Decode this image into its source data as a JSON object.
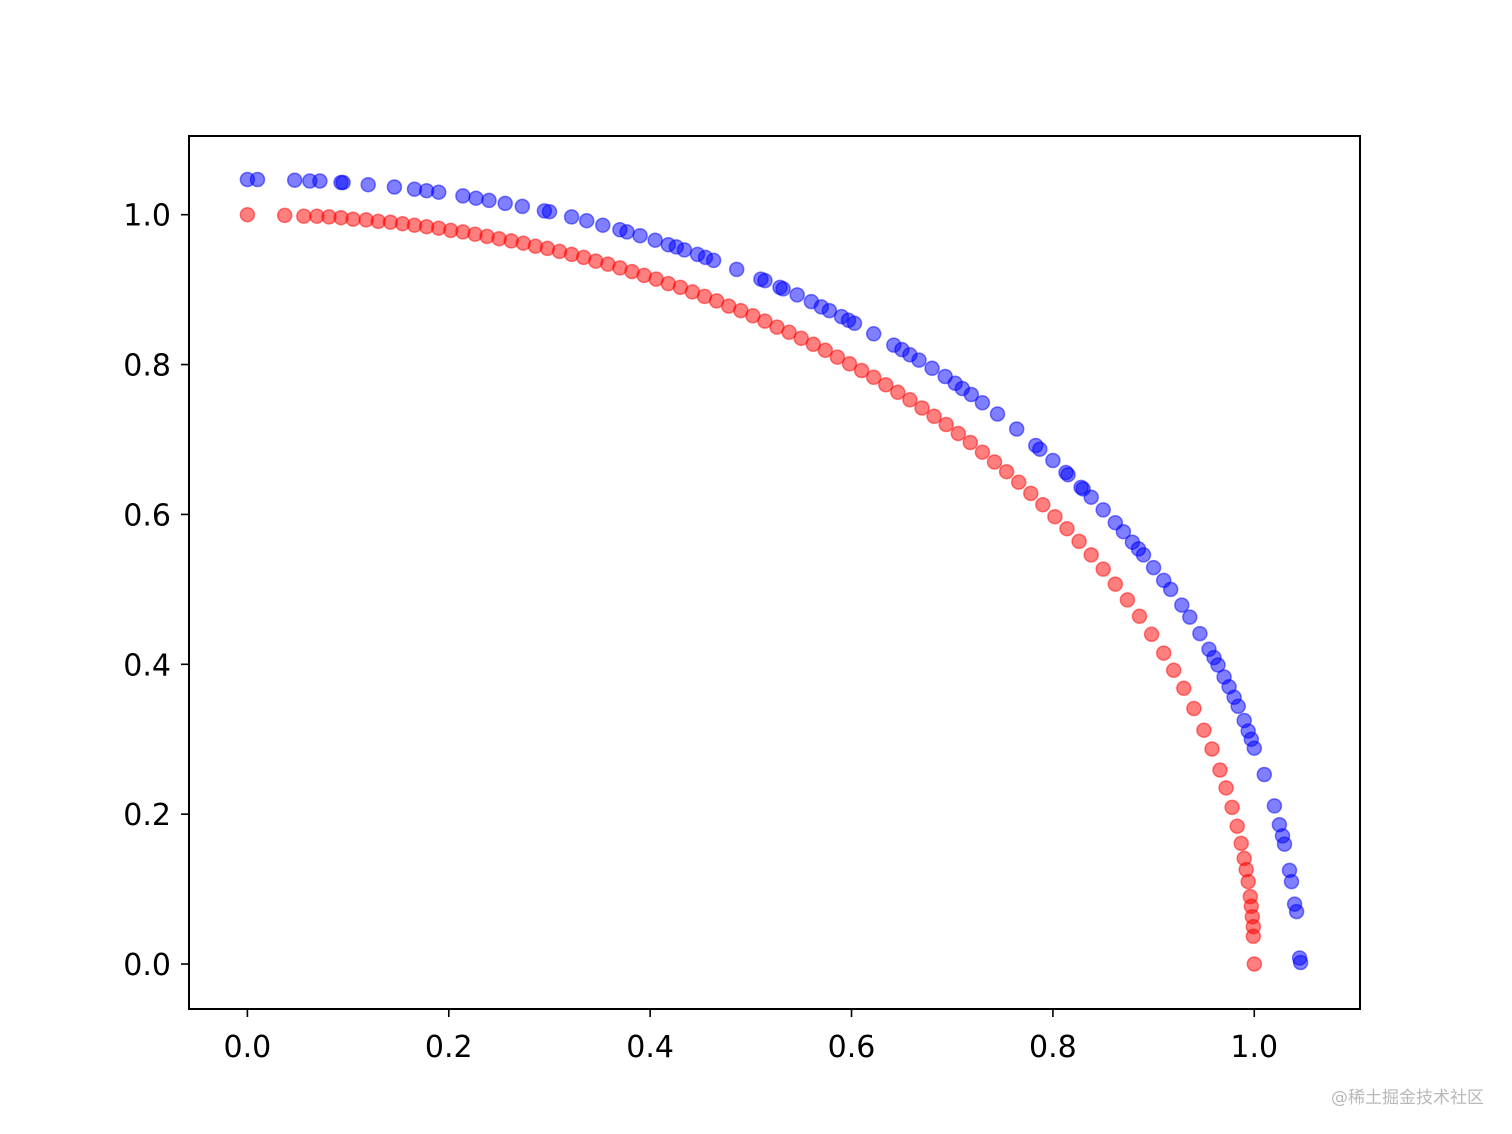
{
  "chart_data": {
    "type": "scatter",
    "title": "",
    "xlabel": "",
    "ylabel": "",
    "xlim": [
      -0.058,
      1.105
    ],
    "ylim": [
      -0.06,
      1.105
    ],
    "xticks": [
      0.0,
      0.2,
      0.4,
      0.6,
      0.8,
      1.0
    ],
    "yticks": [
      0.0,
      0.2,
      0.4,
      0.6,
      0.8,
      1.0
    ],
    "xtick_labels": [
      "0.0",
      "0.2",
      "0.4",
      "0.6",
      "0.8",
      "1.0"
    ],
    "ytick_labels": [
      "0.0",
      "0.2",
      "0.4",
      "0.6",
      "0.8",
      "1.0"
    ],
    "grid": false,
    "legend": "none",
    "marker_alpha": 0.5,
    "series": [
      {
        "color": "#ff0000",
        "points": [
          [
            0.0,
            1.0
          ],
          [
            0.037,
            0.999
          ],
          [
            0.056,
            0.998
          ],
          [
            0.069,
            0.998
          ],
          [
            0.081,
            0.997
          ],
          [
            0.093,
            0.996
          ],
          [
            0.105,
            0.994
          ],
          [
            0.118,
            0.993
          ],
          [
            0.13,
            0.991
          ],
          [
            0.142,
            0.99
          ],
          [
            0.154,
            0.988
          ],
          [
            0.166,
            0.986
          ],
          [
            0.178,
            0.984
          ],
          [
            0.19,
            0.982
          ],
          [
            0.202,
            0.979
          ],
          [
            0.214,
            0.977
          ],
          [
            0.226,
            0.974
          ],
          [
            0.238,
            0.971
          ],
          [
            0.25,
            0.968
          ],
          [
            0.262,
            0.965
          ],
          [
            0.274,
            0.962
          ],
          [
            0.286,
            0.958
          ],
          [
            0.298,
            0.955
          ],
          [
            0.31,
            0.951
          ],
          [
            0.322,
            0.947
          ],
          [
            0.334,
            0.943
          ],
          [
            0.346,
            0.938
          ],
          [
            0.358,
            0.934
          ],
          [
            0.37,
            0.929
          ],
          [
            0.382,
            0.924
          ],
          [
            0.394,
            0.919
          ],
          [
            0.406,
            0.914
          ],
          [
            0.418,
            0.908
          ],
          [
            0.43,
            0.903
          ],
          [
            0.442,
            0.897
          ],
          [
            0.454,
            0.891
          ],
          [
            0.466,
            0.885
          ],
          [
            0.478,
            0.878
          ],
          [
            0.49,
            0.872
          ],
          [
            0.502,
            0.865
          ],
          [
            0.514,
            0.858
          ],
          [
            0.526,
            0.85
          ],
          [
            0.538,
            0.843
          ],
          [
            0.55,
            0.835
          ],
          [
            0.562,
            0.827
          ],
          [
            0.574,
            0.819
          ],
          [
            0.586,
            0.81
          ],
          [
            0.598,
            0.801
          ],
          [
            0.61,
            0.792
          ],
          [
            0.622,
            0.783
          ],
          [
            0.634,
            0.773
          ],
          [
            0.646,
            0.763
          ],
          [
            0.658,
            0.753
          ],
          [
            0.67,
            0.742
          ],
          [
            0.682,
            0.731
          ],
          [
            0.694,
            0.72
          ],
          [
            0.706,
            0.708
          ],
          [
            0.718,
            0.696
          ],
          [
            0.73,
            0.683
          ],
          [
            0.742,
            0.67
          ],
          [
            0.754,
            0.657
          ],
          [
            0.766,
            0.643
          ],
          [
            0.778,
            0.628
          ],
          [
            0.79,
            0.613
          ],
          [
            0.802,
            0.597
          ],
          [
            0.814,
            0.581
          ],
          [
            0.826,
            0.564
          ],
          [
            0.838,
            0.546
          ],
          [
            0.85,
            0.527
          ],
          [
            0.862,
            0.507
          ],
          [
            0.874,
            0.486
          ],
          [
            0.886,
            0.464
          ],
          [
            0.898,
            0.44
          ],
          [
            0.91,
            0.415
          ],
          [
            0.92,
            0.392
          ],
          [
            0.93,
            0.368
          ],
          [
            0.94,
            0.341
          ],
          [
            0.95,
            0.312
          ],
          [
            0.958,
            0.287
          ],
          [
            0.966,
            0.259
          ],
          [
            0.972,
            0.235
          ],
          [
            0.978,
            0.209
          ],
          [
            0.983,
            0.184
          ],
          [
            0.987,
            0.161
          ],
          [
            0.99,
            0.141
          ],
          [
            0.992,
            0.126
          ],
          [
            0.994,
            0.11
          ],
          [
            0.996,
            0.09
          ],
          [
            0.997,
            0.077
          ],
          [
            0.998,
            0.063
          ],
          [
            0.999,
            0.05
          ],
          [
            0.999,
            0.037
          ],
          [
            1.0,
            0.0
          ]
        ]
      },
      {
        "color": "#0000ff",
        "points": [
          [
            0.0,
            1.047
          ],
          [
            0.01,
            1.047
          ],
          [
            0.047,
            1.046
          ],
          [
            0.062,
            1.045
          ],
          [
            0.072,
            1.045
          ],
          [
            0.093,
            1.043
          ],
          [
            0.095,
            1.043
          ],
          [
            0.12,
            1.04
          ],
          [
            0.146,
            1.037
          ],
          [
            0.166,
            1.034
          ],
          [
            0.178,
            1.032
          ],
          [
            0.19,
            1.03
          ],
          [
            0.214,
            1.025
          ],
          [
            0.227,
            1.022
          ],
          [
            0.24,
            1.019
          ],
          [
            0.256,
            1.015
          ],
          [
            0.273,
            1.011
          ],
          [
            0.295,
            1.005
          ],
          [
            0.3,
            1.004
          ],
          [
            0.322,
            0.997
          ],
          [
            0.337,
            0.992
          ],
          [
            0.353,
            0.986
          ],
          [
            0.37,
            0.98
          ],
          [
            0.377,
            0.977
          ],
          [
            0.39,
            0.972
          ],
          [
            0.405,
            0.966
          ],
          [
            0.418,
            0.96
          ],
          [
            0.426,
            0.957
          ],
          [
            0.434,
            0.953
          ],
          [
            0.447,
            0.947
          ],
          [
            0.455,
            0.943
          ],
          [
            0.463,
            0.939
          ],
          [
            0.486,
            0.927
          ],
          [
            0.51,
            0.914
          ],
          [
            0.514,
            0.912
          ],
          [
            0.529,
            0.903
          ],
          [
            0.532,
            0.901
          ],
          [
            0.546,
            0.893
          ],
          [
            0.56,
            0.884
          ],
          [
            0.57,
            0.877
          ],
          [
            0.578,
            0.872
          ],
          [
            0.59,
            0.864
          ],
          [
            0.597,
            0.859
          ],
          [
            0.603,
            0.855
          ],
          [
            0.622,
            0.841
          ],
          [
            0.642,
            0.826
          ],
          [
            0.65,
            0.82
          ],
          [
            0.658,
            0.813
          ],
          [
            0.667,
            0.806
          ],
          [
            0.68,
            0.795
          ],
          [
            0.693,
            0.784
          ],
          [
            0.703,
            0.775
          ],
          [
            0.71,
            0.768
          ],
          [
            0.719,
            0.76
          ],
          [
            0.73,
            0.749
          ],
          [
            0.745,
            0.734
          ],
          [
            0.764,
            0.714
          ],
          [
            0.783,
            0.692
          ],
          [
            0.787,
            0.687
          ],
          [
            0.8,
            0.672
          ],
          [
            0.813,
            0.656
          ],
          [
            0.815,
            0.653
          ],
          [
            0.828,
            0.636
          ],
          [
            0.83,
            0.634
          ],
          [
            0.838,
            0.623
          ],
          [
            0.85,
            0.606
          ],
          [
            0.862,
            0.589
          ],
          [
            0.87,
            0.577
          ],
          [
            0.879,
            0.563
          ],
          [
            0.885,
            0.554
          ],
          [
            0.89,
            0.546
          ],
          [
            0.9,
            0.529
          ],
          [
            0.91,
            0.512
          ],
          [
            0.917,
            0.5
          ],
          [
            0.928,
            0.479
          ],
          [
            0.936,
            0.463
          ],
          [
            0.946,
            0.441
          ],
          [
            0.955,
            0.42
          ],
          [
            0.96,
            0.409
          ],
          [
            0.964,
            0.399
          ],
          [
            0.97,
            0.383
          ],
          [
            0.975,
            0.37
          ],
          [
            0.98,
            0.356
          ],
          [
            0.984,
            0.344
          ],
          [
            0.99,
            0.325
          ],
          [
            0.994,
            0.311
          ],
          [
            0.997,
            0.3
          ],
          [
            1.0,
            0.288
          ],
          [
            1.01,
            0.253
          ],
          [
            1.02,
            0.211
          ],
          [
            1.025,
            0.186
          ],
          [
            1.028,
            0.171
          ],
          [
            1.03,
            0.16
          ],
          [
            1.035,
            0.125
          ],
          [
            1.037,
            0.11
          ],
          [
            1.04,
            0.08
          ],
          [
            1.042,
            0.07
          ],
          [
            1.045,
            0.008
          ],
          [
            1.046,
            0.002
          ]
        ]
      }
    ]
  },
  "watermark": "@稀土掘金技术社区"
}
